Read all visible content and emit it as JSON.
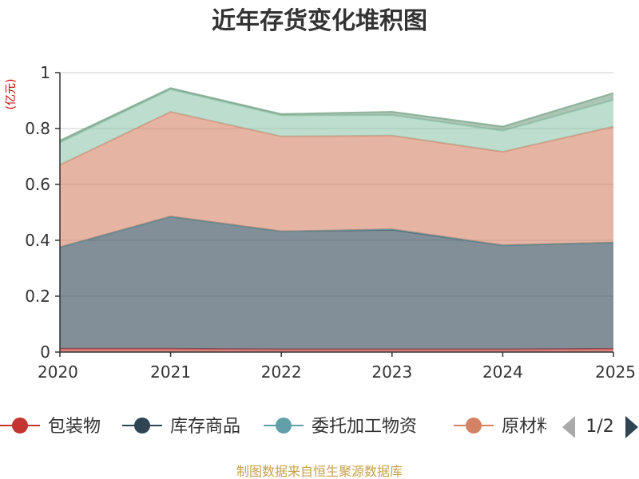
{
  "chart_data": {
    "type": "area",
    "stacked": true,
    "title": "近年存货变化堆积图",
    "unit_label": "(亿元)",
    "x": [
      "2020",
      "2021",
      "2022",
      "2023",
      "2024",
      "2025"
    ],
    "ylim": [
      0,
      1
    ],
    "yticks": [
      "0",
      "0.2",
      "0.4",
      "0.6",
      "0.8",
      "1"
    ],
    "grid": true,
    "series": [
      {
        "name": "包装物",
        "color": "#c23531",
        "values": [
          0.012,
          0.012,
          0.01,
          0.01,
          0.01,
          0.012
        ]
      },
      {
        "name": "库存商品",
        "color": "#2f4554",
        "values": [
          0.363,
          0.473,
          0.422,
          0.428,
          0.372,
          0.38
        ]
      },
      {
        "name": "委托加工物资",
        "color": "#61a0a8",
        "values": [
          0.0,
          0.0,
          0.0,
          0.002,
          0.0,
          0.0
        ]
      },
      {
        "name": "原材料",
        "color": "#d48265",
        "values": [
          0.295,
          0.375,
          0.34,
          0.335,
          0.335,
          0.415
        ]
      },
      {
        "name": "",
        "color": "#91c7ae",
        "values": [
          0.08,
          0.08,
          0.075,
          0.073,
          0.075,
          0.095
        ]
      },
      {
        "name": "",
        "color": "#749f83",
        "values": [
          0.007,
          0.005,
          0.005,
          0.012,
          0.015,
          0.025
        ]
      }
    ],
    "legend": {
      "position": "bottom",
      "items": [
        "包装物",
        "库存商品",
        "委托加工物资",
        "原材料"
      ],
      "page": "1/2"
    }
  },
  "footer": "制图数据来自恒生聚源数据库"
}
